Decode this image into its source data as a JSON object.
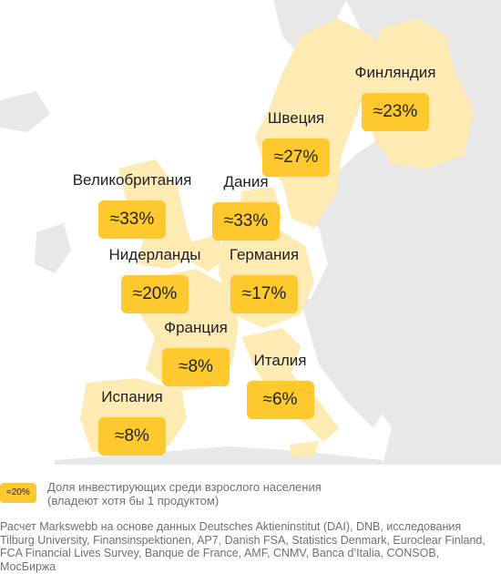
{
  "countries": [
    {
      "id": "finland",
      "name": "Финляндия",
      "value": "≈23%"
    },
    {
      "id": "sweden",
      "name": "Швеция",
      "value": "≈27%"
    },
    {
      "id": "uk",
      "name": "Великобритания",
      "value": "≈33%"
    },
    {
      "id": "denmark",
      "name": "Дания",
      "value": "≈33%"
    },
    {
      "id": "netherlands",
      "name": "Нидерланды",
      "value": "≈20%"
    },
    {
      "id": "germany",
      "name": "Германия",
      "value": "≈17%"
    },
    {
      "id": "france",
      "name": "Франция",
      "value": "≈8%"
    },
    {
      "id": "italy",
      "name": "Италия",
      "value": "≈6%"
    },
    {
      "id": "spain",
      "name": "Испания",
      "value": "≈8%"
    }
  ],
  "legend": {
    "key_label": "≈20%",
    "line1": "Доля инвестирующих среди взрослого населения",
    "line2": "(владеют хотя бы 1 продуктом)"
  },
  "source": {
    "text": "Расчет Markswebb на основе данных Deutsches Aktieninstitut (DAI), DNB, исследования Tilburg University, Finansinspektionen, AP7, Danish FSA, Statistics Denmark, Euroclear Finland, FCA Financial Lives Survey, Banque de France, AMF, CNMV, Banca d’Italia, CONSOB, МосБиржа"
  },
  "colors": {
    "land": "#e8e8e8",
    "highlight": "#fdebb3",
    "badge": "#fdc92f",
    "text": "#1f1f1f",
    "muted": "#6f6f6f"
  }
}
